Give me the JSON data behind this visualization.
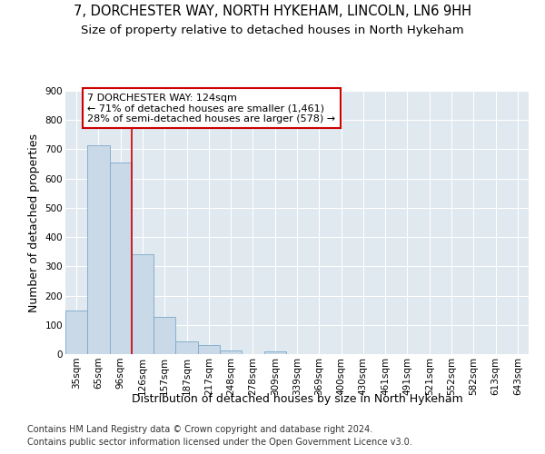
{
  "title1": "7, DORCHESTER WAY, NORTH HYKEHAM, LINCOLN, LN6 9HH",
  "title2": "Size of property relative to detached houses in North Hykeham",
  "xlabel": "Distribution of detached houses by size in North Hykeham",
  "ylabel": "Number of detached properties",
  "footnote1": "Contains HM Land Registry data © Crown copyright and database right 2024.",
  "footnote2": "Contains public sector information licensed under the Open Government Licence v3.0.",
  "categories": [
    "35sqm",
    "65sqm",
    "96sqm",
    "126sqm",
    "157sqm",
    "187sqm",
    "217sqm",
    "248sqm",
    "278sqm",
    "309sqm",
    "339sqm",
    "369sqm",
    "400sqm",
    "430sqm",
    "461sqm",
    "491sqm",
    "521sqm",
    "552sqm",
    "582sqm",
    "613sqm",
    "643sqm"
  ],
  "values": [
    150,
    715,
    655,
    340,
    128,
    42,
    32,
    12,
    0,
    8,
    0,
    0,
    0,
    0,
    0,
    0,
    0,
    0,
    0,
    0,
    0
  ],
  "bar_color": "#c9d9e8",
  "bar_edge_color": "#7aaac8",
  "property_line_color": "#cc0000",
  "annotation_line1": "7 DORCHESTER WAY: 124sqm",
  "annotation_line2": "← 71% of detached houses are smaller (1,461)",
  "annotation_line3": "28% of semi-detached houses are larger (578) →",
  "annotation_box_color": "#cc0000",
  "ylim": [
    0,
    900
  ],
  "yticks": [
    0,
    100,
    200,
    300,
    400,
    500,
    600,
    700,
    800,
    900
  ],
  "background_color": "#e0e8f0",
  "grid_color": "#ffffff",
  "title1_fontsize": 10.5,
  "title2_fontsize": 9.5,
  "axis_label_fontsize": 9,
  "tick_fontsize": 7.5,
  "annotation_fontsize": 8,
  "footnote_fontsize": 7
}
